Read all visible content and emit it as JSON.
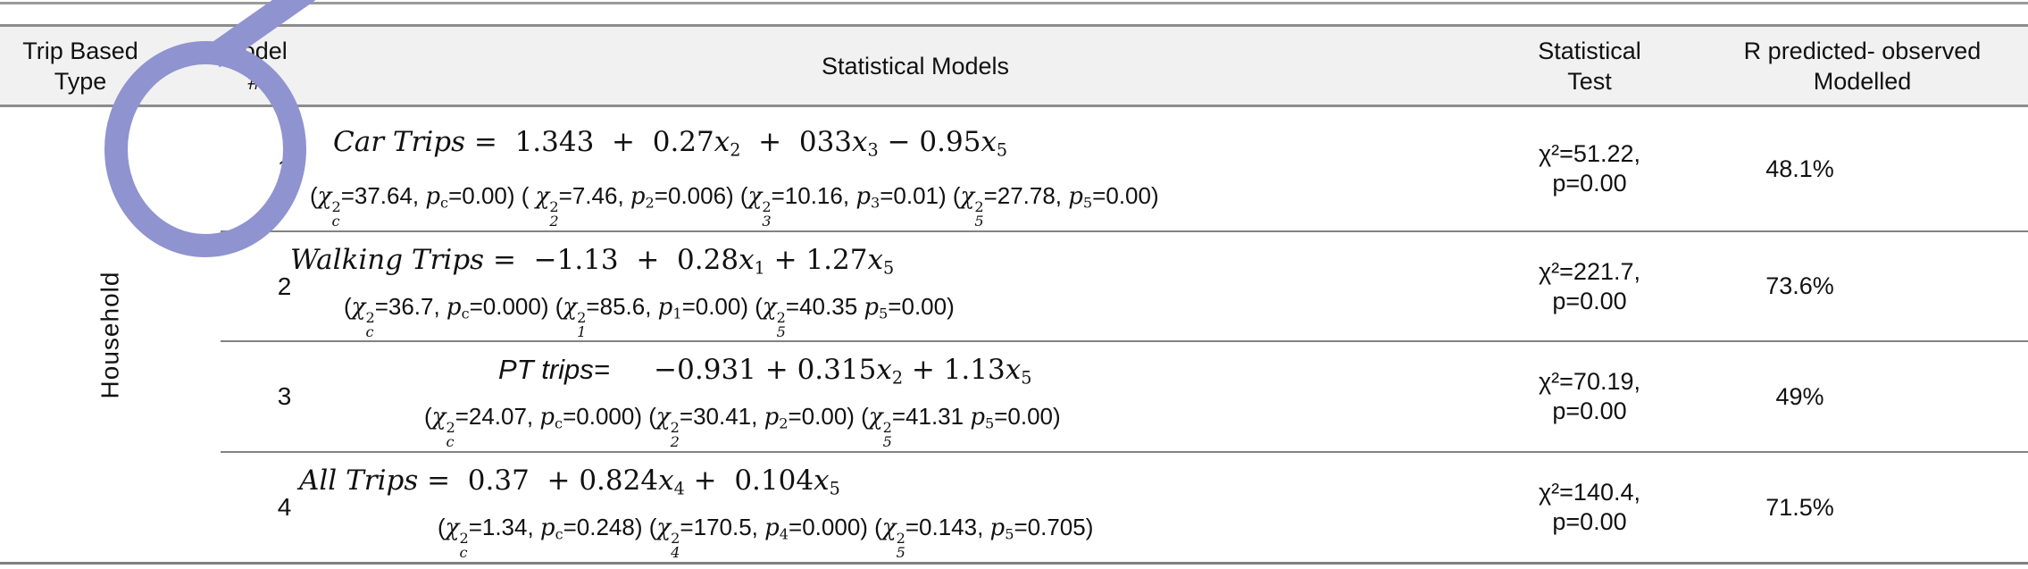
{
  "table": {
    "headers": {
      "trip_type_l1": "Trip Based",
      "trip_type_l2": "Type",
      "model_l1": "Model",
      "model_l2": "#",
      "models": "Statistical Models",
      "test_l1": "Statistical",
      "test_l2": "Test",
      "r_l1": "R predicted- observed",
      "r_l2": "Modelled"
    },
    "group_label": "Household",
    "rows": [
      {
        "model": "1",
        "eq": [
          {
            "c": "mi",
            "t": "Car Trips "
          },
          {
            "c": "m",
            "t": "=  1.343  +  0.27"
          },
          {
            "c": "mi",
            "t": "x"
          },
          {
            "c": "sub",
            "t": "2"
          },
          {
            "c": "m",
            "t": "  +  033"
          },
          {
            "c": "mi",
            "t": "x"
          },
          {
            "c": "sub",
            "t": "3"
          },
          {
            "c": "m",
            "t": " − 0.95"
          },
          {
            "c": "mi",
            "t": "x"
          },
          {
            "c": "sub",
            "t": "5"
          }
        ],
        "chi": [
          {
            "c": "s",
            "t": "("
          },
          {
            "c": "mi",
            "t": "χ"
          },
          {
            "c": "ss",
            "t": "2|c"
          },
          {
            "c": "s",
            "t": "=37.64, "
          },
          {
            "c": "mi",
            "t": "p"
          },
          {
            "c": "sub",
            "t": "c"
          },
          {
            "c": "s",
            "t": "=0.00) ( "
          },
          {
            "c": "mi",
            "t": "χ"
          },
          {
            "c": "ss",
            "t": "2|2"
          },
          {
            "c": "s",
            "t": "=7.46, "
          },
          {
            "c": "mi",
            "t": "p"
          },
          {
            "c": "sub",
            "t": "2"
          },
          {
            "c": "s",
            "t": "=0.006) ("
          },
          {
            "c": "mi",
            "t": "χ"
          },
          {
            "c": "ss",
            "t": "2|3"
          },
          {
            "c": "s",
            "t": "=10.16, "
          },
          {
            "c": "mi",
            "t": "p"
          },
          {
            "c": "sub",
            "t": "3"
          },
          {
            "c": "s",
            "t": "=0.01) ("
          },
          {
            "c": "mi",
            "t": "χ"
          },
          {
            "c": "ss",
            "t": "2|5"
          },
          {
            "c": "s",
            "t": "=27.78, "
          },
          {
            "c": "mi",
            "t": "p"
          },
          {
            "c": "sub",
            "t": "5"
          },
          {
            "c": "s",
            "t": "=0.00)"
          }
        ],
        "test_chi": "χ²=51.22,",
        "test_p": "p=0.00",
        "r": "48.1%"
      },
      {
        "model": "2",
        "eq": [
          {
            "c": "mi",
            "t": "Walking Trips "
          },
          {
            "c": "m",
            "t": "=  −1.13  +  0.28"
          },
          {
            "c": "mi",
            "t": "x"
          },
          {
            "c": "sub",
            "t": "1"
          },
          {
            "c": "m",
            "t": " + 1.27"
          },
          {
            "c": "mi",
            "t": "x"
          },
          {
            "c": "sub",
            "t": "5"
          }
        ],
        "chi": [
          {
            "c": "s",
            "t": "("
          },
          {
            "c": "mi",
            "t": "χ"
          },
          {
            "c": "ss",
            "t": "2|c"
          },
          {
            "c": "s",
            "t": "=36.7, "
          },
          {
            "c": "mi",
            "t": "p"
          },
          {
            "c": "sub",
            "t": "c"
          },
          {
            "c": "s",
            "t": "=0.000) ("
          },
          {
            "c": "mi",
            "t": "χ"
          },
          {
            "c": "ss",
            "t": "2|1"
          },
          {
            "c": "s",
            "t": "=85.6, "
          },
          {
            "c": "mi",
            "t": "p"
          },
          {
            "c": "sub",
            "t": "1"
          },
          {
            "c": "s",
            "t": "=0.00) ("
          },
          {
            "c": "mi",
            "t": "χ"
          },
          {
            "c": "ss",
            "t": "2|5"
          },
          {
            "c": "s",
            "t": "=40.35 "
          },
          {
            "c": "mi",
            "t": "p"
          },
          {
            "c": "sub",
            "t": "5"
          },
          {
            "c": "s",
            "t": "=0.00)"
          }
        ],
        "test_chi": "χ²=221.7,",
        "test_p": "p=0.00",
        "r": "73.6%"
      },
      {
        "model": "3",
        "eq": [
          {
            "c": "si",
            "t": "PT trips="
          },
          {
            "c": "m",
            "t": "     −0.931 + 0.315"
          },
          {
            "c": "mi",
            "t": "x"
          },
          {
            "c": "sub",
            "t": "2"
          },
          {
            "c": "m",
            "t": " + 1.13"
          },
          {
            "c": "mi",
            "t": "x"
          },
          {
            "c": "sub",
            "t": "5"
          }
        ],
        "chi": [
          {
            "c": "s",
            "t": "("
          },
          {
            "c": "mi",
            "t": "χ"
          },
          {
            "c": "ss",
            "t": "2|c"
          },
          {
            "c": "s",
            "t": "=24.07, "
          },
          {
            "c": "mi",
            "t": "p"
          },
          {
            "c": "sub",
            "t": "c"
          },
          {
            "c": "s",
            "t": "=0.000) ("
          },
          {
            "c": "mi",
            "t": "χ"
          },
          {
            "c": "ss",
            "t": "2|2"
          },
          {
            "c": "s",
            "t": "=30.41, "
          },
          {
            "c": "mi",
            "t": "p"
          },
          {
            "c": "sub",
            "t": "2"
          },
          {
            "c": "s",
            "t": "=0.00) ("
          },
          {
            "c": "mi",
            "t": "χ"
          },
          {
            "c": "ss",
            "t": "2|5"
          },
          {
            "c": "s",
            "t": "=41.31 "
          },
          {
            "c": "mi",
            "t": "p"
          },
          {
            "c": "sub",
            "t": "5"
          },
          {
            "c": "s",
            "t": "=0.00)"
          }
        ],
        "test_chi": "χ²=70.19,",
        "test_p": "p=0.00",
        "r": "49%"
      },
      {
        "model": "4",
        "eq": [
          {
            "c": "mi",
            "t": "All Trips "
          },
          {
            "c": "m",
            "t": "=  0.37  + 0.824"
          },
          {
            "c": "mi",
            "t": "x"
          },
          {
            "c": "sub",
            "t": "4"
          },
          {
            "c": "m",
            "t": " +  0.104"
          },
          {
            "c": "mi",
            "t": "x"
          },
          {
            "c": "sub",
            "t": "5"
          }
        ],
        "chi": [
          {
            "c": "s",
            "t": "("
          },
          {
            "c": "mi",
            "t": "χ"
          },
          {
            "c": "ss",
            "t": "2|c"
          },
          {
            "c": "s",
            "t": "=1.34, "
          },
          {
            "c": "mi",
            "t": "p"
          },
          {
            "c": "sub",
            "t": "c"
          },
          {
            "c": "s",
            "t": "=0.248) ("
          },
          {
            "c": "mi",
            "t": "χ"
          },
          {
            "c": "ss",
            "t": "2|4"
          },
          {
            "c": "s",
            "t": "=170.5, "
          },
          {
            "c": "mi",
            "t": "p"
          },
          {
            "c": "sub",
            "t": "4"
          },
          {
            "c": "s",
            "t": "=0.000) ("
          },
          {
            "c": "mi",
            "t": "χ"
          },
          {
            "c": "ss",
            "t": "2|5"
          },
          {
            "c": "s",
            "t": "=0.143, "
          },
          {
            "c": "mi",
            "t": "p"
          },
          {
            "c": "sub",
            "t": "5"
          },
          {
            "c": "s",
            "t": "=0.705)"
          }
        ],
        "test_chi": "χ²=140.4,",
        "test_p": "p=0.00",
        "r": "71.5%"
      }
    ]
  },
  "annotation": {
    "type": "hand-drawn pen circle around model 1 with stroke exiting top edge",
    "color": "#8F93CF"
  }
}
